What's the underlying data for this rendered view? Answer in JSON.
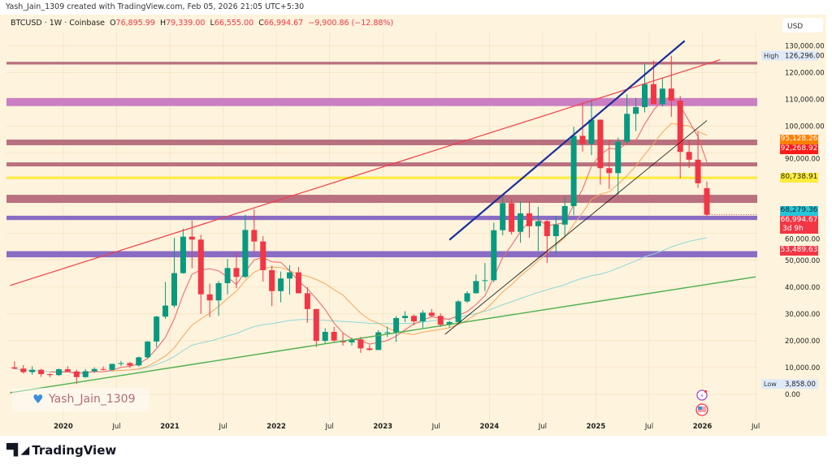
{
  "credit": "Yash_Jain_1309 created with TradingView.com, Feb 05, 2026 21:05 UTC+5:30",
  "legend": {
    "symbol": "BTCUSD · 1W · Coinbase",
    "o_label": "O",
    "o": "76,895.99",
    "h_label": "H",
    "h": "79,339.00",
    "l_label": "L",
    "l": "66,555.00",
    "c_label": "C",
    "c": "66,994.67",
    "change": "−9,900.86 (−12.88%)"
  },
  "watermark": "Yash_Jain_1309",
  "brand": "TradingView",
  "currency": "USD",
  "colors": {
    "background": "#fef3dc",
    "up": "#089981",
    "down": "#f23645",
    "ma_fast": "#f0606a",
    "ma_mid": "#f5a75a",
    "ma_slow": "#8fd8d8"
  },
  "chart_data": {
    "type": "candlestick",
    "symbol": "BTCUSD",
    "ylim": [
      0,
      130000
    ],
    "y_scale": "linear",
    "grid": true,
    "y_ticks": [
      "130,000.00",
      "120,000.00",
      "110,000.00",
      "100,000.00",
      "90,000.00",
      "60,000.00",
      "50,000.00",
      "40,000.00",
      "30,000.00",
      "20,000.00",
      "10,000.00",
      "0.00"
    ],
    "y_tick_values": [
      130000,
      120000,
      110000,
      100000,
      90000,
      60000,
      50000,
      40000,
      30000,
      20000,
      10000,
      0
    ],
    "x_ticks": [
      {
        "label": "2020",
        "date": "2020-01"
      },
      {
        "label": "Jul",
        "date": "2020-07"
      },
      {
        "label": "2021",
        "date": "2021-01"
      },
      {
        "label": "Jul",
        "date": "2021-07"
      },
      {
        "label": "2022",
        "date": "2022-01"
      },
      {
        "label": "Jul",
        "date": "2022-07"
      },
      {
        "label": "2023",
        "date": "2023-01"
      },
      {
        "label": "Jul",
        "date": "2023-07"
      },
      {
        "label": "2024",
        "date": "2024-01"
      },
      {
        "label": "Jul",
        "date": "2024-07"
      },
      {
        "label": "2025",
        "date": "2025-01"
      },
      {
        "label": "Jul",
        "date": "2025-07"
      },
      {
        "label": "2026",
        "date": "2026-01"
      },
      {
        "label": "Jul",
        "date": "2026-07"
      }
    ],
    "high_marker": {
      "label": "High",
      "value": "126,296.00",
      "price": 126296
    },
    "low_marker": {
      "label": "Low",
      "value": "3,858.00",
      "price": 3858
    },
    "price_labels": [
      {
        "value": "95,128.26",
        "price": 95128.26,
        "color": "#ff8000",
        "text_color": "#ffffff"
      },
      {
        "value": "92,268.92",
        "price": 92268.92,
        "color": "#ff1a1a",
        "text_color": "#ffffff"
      },
      {
        "value": "80,738.91",
        "price": 80738.91,
        "color": "#ffeb3b",
        "text_color": "#222222"
      },
      {
        "value": "68,279.36",
        "price": 68279.36,
        "color": "#26c6da",
        "text_color": "#222222"
      },
      {
        "value": "66,994.67",
        "sub": "3d 9h",
        "price": 66994.67,
        "color": "#f23645",
        "text_color": "#ffffff"
      },
      {
        "value": "53,489.63",
        "price": 53489.63,
        "color": "#f23645",
        "text_color": "#ffffff"
      }
    ],
    "zones": [
      {
        "from": 123000,
        "to": 124000,
        "color": "#b9707f"
      },
      {
        "from": 107500,
        "to": 110500,
        "color": "#c97fc2"
      },
      {
        "from": 92900,
        "to": 95000,
        "color": "#b9707f"
      },
      {
        "from": 85000,
        "to": 86500,
        "color": "#b9707f"
      },
      {
        "from": 71400,
        "to": 74400,
        "color": "#b9707f"
      },
      {
        "from": 65000,
        "to": 66600,
        "color": "#8a6cc4"
      },
      {
        "from": 51100,
        "to": 53400,
        "color": "#8a6cc4"
      }
    ],
    "levels": [
      {
        "price": 80738.91,
        "color": "#ffeb3b"
      }
    ],
    "trendlines": [
      {
        "name": "red-trendline",
        "from": {
          "date": "2019-07.5",
          "price": 40600
        },
        "to": {
          "date": "2026-03.5",
          "price": 124800
        },
        "color": "#f0404a",
        "width": 1.2
      },
      {
        "name": "green-trendline",
        "from": {
          "date": "2019-07.5",
          "price": 600
        },
        "to": {
          "date": "2026-07.5",
          "price": 43800
        },
        "color": "#4caf50",
        "width": 1.4
      },
      {
        "name": "blue-trendline",
        "from": {
          "date": "2023-09",
          "price": 57600
        },
        "to": {
          "date": "2025-11.5",
          "price": 131800
        },
        "color": "#1a2f9c",
        "width": 2.2
      },
      {
        "name": "black-trendline",
        "from": {
          "date": "2023-08.5",
          "price": 22400
        },
        "to": {
          "date": "2026-02",
          "price": 102100
        },
        "color": "#222222",
        "width": 0.9
      }
    ],
    "ma_periods": {
      "fast": 5,
      "mid": 12,
      "slow": 46
    },
    "candles": [
      [
        "2019-08",
        10080,
        12300,
        9350,
        9600
      ],
      [
        "2019-09",
        9600,
        10900,
        7750,
        8290
      ],
      [
        "2019-10",
        8290,
        10500,
        7300,
        9150
      ],
      [
        "2019-11",
        9150,
        9500,
        6500,
        7550
      ],
      [
        "2019-12",
        7550,
        7750,
        6430,
        7190
      ],
      [
        "2020-01",
        7190,
        9580,
        6850,
        9350
      ],
      [
        "2020-02",
        9350,
        10500,
        8450,
        8540
      ],
      [
        "2020-03",
        8540,
        9200,
        3858,
        6420
      ],
      [
        "2020-04",
        6420,
        9460,
        6150,
        8630
      ],
      [
        "2020-05",
        8630,
        10080,
        8100,
        9450
      ],
      [
        "2020-06",
        9450,
        10400,
        8900,
        9140
      ],
      [
        "2020-07",
        9140,
        11450,
        8950,
        11350
      ],
      [
        "2020-08",
        11350,
        12470,
        10540,
        11660
      ],
      [
        "2020-09",
        11660,
        12080,
        9850,
        10780
      ],
      [
        "2020-10",
        10780,
        14100,
        10370,
        13800
      ],
      [
        "2020-11",
        13800,
        19900,
        13200,
        19700
      ],
      [
        "2020-12",
        19700,
        29300,
        17600,
        28990
      ],
      [
        "2021-01",
        28990,
        41950,
        28130,
        33100
      ],
      [
        "2021-02",
        33100,
        58350,
        32300,
        45200
      ],
      [
        "2021-03",
        45200,
        61780,
        45000,
        58800
      ],
      [
        "2021-04",
        58800,
        64850,
        47000,
        57700
      ],
      [
        "2021-05",
        57700,
        59500,
        30000,
        37300
      ],
      [
        "2021-06",
        37300,
        41300,
        28800,
        35040
      ],
      [
        "2021-07",
        35040,
        42300,
        29300,
        41460
      ],
      [
        "2021-08",
        41460,
        50500,
        37300,
        47100
      ],
      [
        "2021-09",
        47100,
        52900,
        39600,
        43800
      ],
      [
        "2021-10",
        43800,
        67000,
        43300,
        61300
      ],
      [
        "2021-11",
        61300,
        69000,
        53250,
        57000
      ],
      [
        "2021-12",
        57000,
        59000,
        42000,
        46300
      ],
      [
        "2022-01",
        46300,
        47990,
        32900,
        38500
      ],
      [
        "2022-02",
        38500,
        45800,
        34300,
        43200
      ],
      [
        "2022-03",
        43200,
        48200,
        37200,
        45500
      ],
      [
        "2022-04",
        45500,
        47450,
        37600,
        37700
      ],
      [
        "2022-05",
        37700,
        40000,
        26700,
        31800
      ],
      [
        "2022-06",
        31800,
        31900,
        17600,
        19950
      ],
      [
        "2022-07",
        19950,
        24650,
        18800,
        23300
      ],
      [
        "2022-08",
        23300,
        25200,
        19600,
        20050
      ],
      [
        "2022-09",
        20050,
        22800,
        18150,
        19400
      ],
      [
        "2022-10",
        19400,
        21100,
        18200,
        20500
      ],
      [
        "2022-11",
        20500,
        21450,
        15480,
        17150
      ],
      [
        "2022-12",
        17150,
        18400,
        16300,
        16550
      ],
      [
        "2023-01",
        16550,
        23950,
        16500,
        23150
      ],
      [
        "2023-02",
        23150,
        25250,
        21400,
        23150
      ],
      [
        "2023-03",
        23150,
        29200,
        19550,
        28450
      ],
      [
        "2023-04",
        28450,
        31000,
        26950,
        29250
      ],
      [
        "2023-05",
        29250,
        29800,
        25800,
        27200
      ],
      [
        "2023-06",
        27200,
        31400,
        24800,
        30450
      ],
      [
        "2023-07",
        30450,
        31800,
        28900,
        29250
      ],
      [
        "2023-08",
        29250,
        30200,
        25150,
        25950
      ],
      [
        "2023-09",
        25950,
        27500,
        24900,
        26970
      ],
      [
        "2023-10",
        26970,
        35200,
        26600,
        34650
      ],
      [
        "2023-11",
        34650,
        38450,
        34100,
        37700
      ],
      [
        "2023-12",
        37700,
        44700,
        37600,
        42250
      ],
      [
        "2024-01",
        42250,
        49000,
        38500,
        42550
      ],
      [
        "2024-02",
        42550,
        64000,
        41800,
        61200
      ],
      [
        "2024-03",
        61200,
        73800,
        59300,
        71300
      ],
      [
        "2024-04",
        71300,
        72800,
        59600,
        60600
      ],
      [
        "2024-05",
        60600,
        71950,
        56500,
        67500
      ],
      [
        "2024-06",
        67500,
        72000,
        58400,
        62700
      ],
      [
        "2024-07",
        62700,
        70000,
        53500,
        64600
      ],
      [
        "2024-08",
        64600,
        65000,
        49000,
        59000
      ],
      [
        "2024-09",
        59000,
        66500,
        52500,
        63300
      ],
      [
        "2024-10",
        63300,
        73600,
        58900,
        70200
      ],
      [
        "2024-11",
        70200,
        99800,
        66800,
        96400
      ],
      [
        "2024-12",
        96400,
        108300,
        90500,
        93400
      ],
      [
        "2025-01",
        93400,
        109500,
        89200,
        102400
      ],
      [
        "2025-02",
        102400,
        102500,
        78200,
        84350
      ],
      [
        "2025-03",
        84350,
        95000,
        76600,
        82500
      ],
      [
        "2025-04",
        82500,
        95750,
        74400,
        94200
      ],
      [
        "2025-05",
        94200,
        111900,
        93300,
        104600
      ],
      [
        "2025-06",
        104600,
        110500,
        98200,
        107100
      ],
      [
        "2025-07",
        107100,
        123200,
        105100,
        115700
      ],
      [
        "2025-08",
        115700,
        124450,
        108800,
        108200
      ],
      [
        "2025-09",
        108200,
        117900,
        107300,
        114000
      ],
      [
        "2025-10",
        114000,
        126296,
        103500,
        109500
      ],
      [
        "2025-11",
        109500,
        111200,
        80600,
        90400
      ],
      [
        "2025-12",
        90400,
        94600,
        84400,
        87500
      ],
      [
        "2026-01",
        87500,
        97900,
        77000,
        78700
      ],
      [
        "2026-02",
        76895.99,
        79339,
        66555,
        66994.67
      ]
    ]
  }
}
